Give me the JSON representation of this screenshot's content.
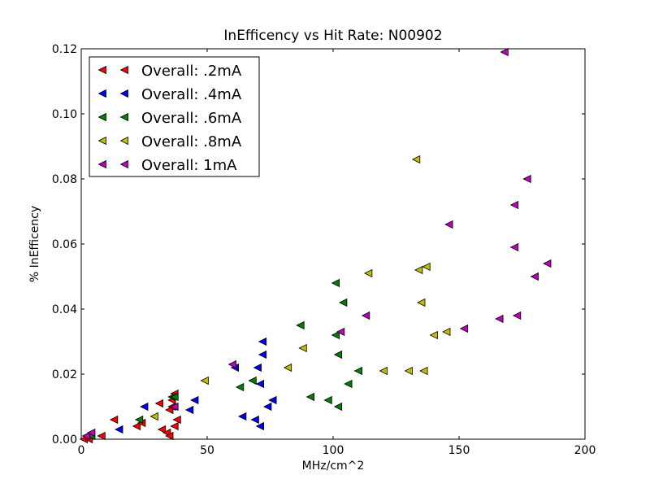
{
  "chart_data": {
    "type": "scatter",
    "title": "InEfficency vs Hit Rate: N00902",
    "xlabel": "MHz/cm^2",
    "ylabel": "% InEfficency",
    "xlim": [
      0,
      200
    ],
    "ylim": [
      0,
      0.12
    ],
    "xticks": [
      "0",
      "50",
      "100",
      "150",
      "200"
    ],
    "yticks": [
      "0.00",
      "0.02",
      "0.04",
      "0.06",
      "0.08",
      "0.10",
      "0.12"
    ],
    "grid": false,
    "legend_position": "top-left",
    "marker": "left-triangle",
    "series": [
      {
        "name": "Overall: .2mA",
        "color": "#ff0000",
        "points": [
          [
            1,
            0.0
          ],
          [
            3,
            0.0
          ],
          [
            8,
            0.001
          ],
          [
            13,
            0.006
          ],
          [
            22,
            0.004
          ],
          [
            24,
            0.005
          ],
          [
            31,
            0.011
          ],
          [
            32,
            0.003
          ],
          [
            34,
            0.002
          ],
          [
            35,
            0.001
          ],
          [
            35,
            0.009
          ],
          [
            36,
            0.01
          ],
          [
            36,
            0.012
          ],
          [
            37,
            0.004
          ],
          [
            37,
            0.014
          ],
          [
            38,
            0.006
          ]
        ]
      },
      {
        "name": "Overall: .4mA",
        "color": "#0000ff",
        "points": [
          [
            2,
            0.001
          ],
          [
            15,
            0.003
          ],
          [
            25,
            0.01
          ],
          [
            43,
            0.009
          ],
          [
            45,
            0.012
          ],
          [
            61,
            0.022
          ],
          [
            64,
            0.007
          ],
          [
            69,
            0.006
          ],
          [
            70,
            0.022
          ],
          [
            71,
            0.017
          ],
          [
            71,
            0.004
          ],
          [
            72,
            0.026
          ],
          [
            72,
            0.03
          ],
          [
            74,
            0.01
          ],
          [
            76,
            0.012
          ]
        ]
      },
      {
        "name": "Overall: .6mA",
        "color": "#008000",
        "points": [
          [
            4,
            0.001
          ],
          [
            23,
            0.006
          ],
          [
            36,
            0.013
          ],
          [
            37,
            0.013
          ],
          [
            63,
            0.016
          ],
          [
            68,
            0.018
          ],
          [
            87,
            0.035
          ],
          [
            91,
            0.013
          ],
          [
            98,
            0.012
          ],
          [
            101,
            0.048
          ],
          [
            101,
            0.032
          ],
          [
            102,
            0.026
          ],
          [
            102,
            0.01
          ],
          [
            104,
            0.042
          ],
          [
            106,
            0.017
          ],
          [
            110,
            0.021
          ]
        ]
      },
      {
        "name": "Overall: .8mA",
        "color": "#bfbf00",
        "points": [
          [
            29,
            0.007
          ],
          [
            49,
            0.018
          ],
          [
            82,
            0.022
          ],
          [
            88,
            0.028
          ],
          [
            114,
            0.051
          ],
          [
            120,
            0.021
          ],
          [
            130,
            0.021
          ],
          [
            133,
            0.086
          ],
          [
            134,
            0.052
          ],
          [
            135,
            0.042
          ],
          [
            136,
            0.021
          ],
          [
            137,
            0.053
          ],
          [
            140,
            0.032
          ],
          [
            145,
            0.033
          ]
        ]
      },
      {
        "name": "Overall: 1mA",
        "color": "#bf00bf",
        "points": [
          [
            2,
            0.001
          ],
          [
            4,
            0.002
          ],
          [
            37,
            0.01
          ],
          [
            60,
            0.023
          ],
          [
            103,
            0.033
          ],
          [
            113,
            0.038
          ],
          [
            146,
            0.066
          ],
          [
            152,
            0.034
          ],
          [
            166,
            0.037
          ],
          [
            168,
            0.119
          ],
          [
            172,
            0.059
          ],
          [
            172,
            0.072
          ],
          [
            173,
            0.038
          ],
          [
            177,
            0.08
          ],
          [
            180,
            0.05
          ],
          [
            185,
            0.054
          ]
        ]
      }
    ]
  }
}
